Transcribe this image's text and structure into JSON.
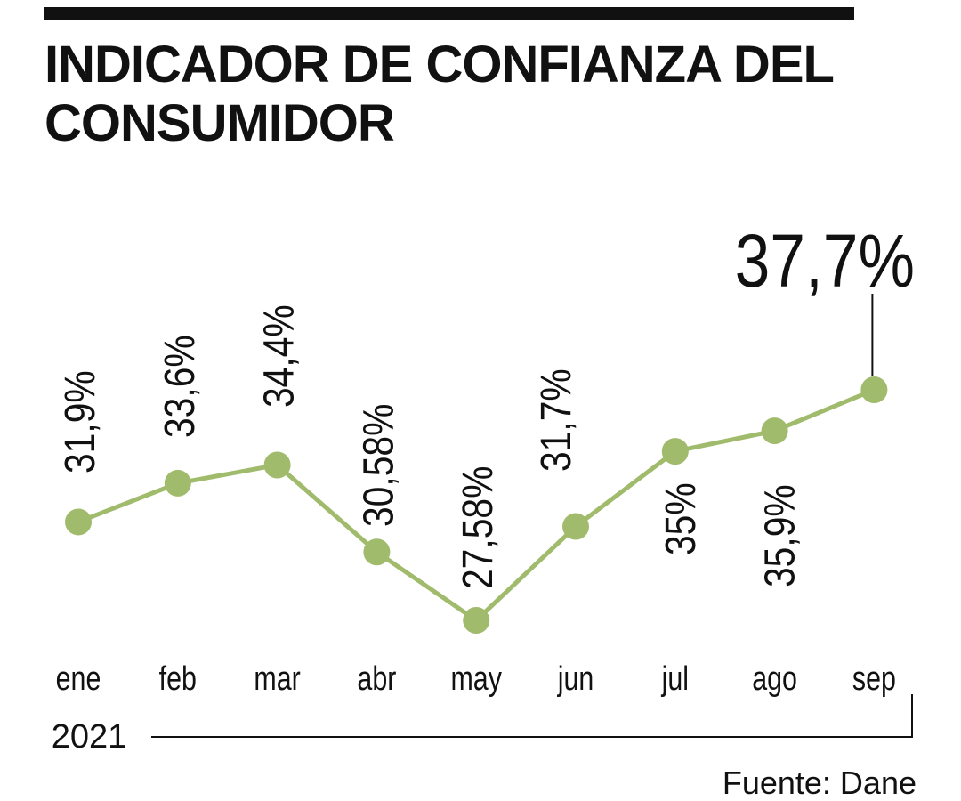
{
  "chart_data": {
    "type": "line",
    "title": "INDICADOR DE CONFIANZA DEL CONSUMIDOR",
    "categories": [
      "ene",
      "feb",
      "mar",
      "abr",
      "may",
      "jun",
      "jul",
      "ago",
      "sep"
    ],
    "year": "2021",
    "series": [
      {
        "name": null,
        "color": "#a0bb6b",
        "values": [
          31.9,
          33.6,
          34.4,
          30.58,
          27.58,
          31.7,
          35,
          35.9,
          37.7
        ],
        "value_labels": [
          "31,9%",
          "33,6%",
          "34,4%",
          "30,58%",
          "27,58%",
          "31,7%",
          "35%",
          "35,9%",
          "37,7%"
        ]
      }
    ],
    "source": "Fuente: Dane"
  }
}
